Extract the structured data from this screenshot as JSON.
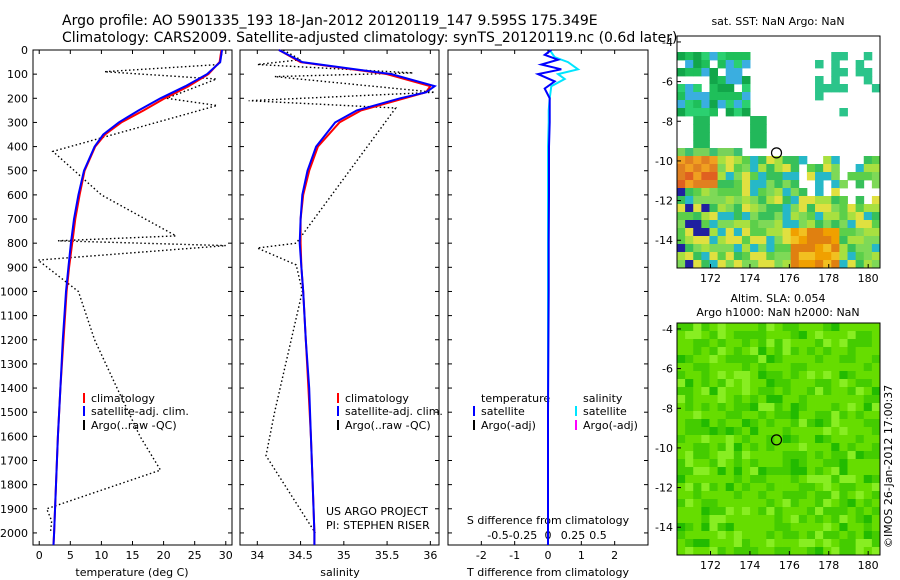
{
  "header": {
    "line1": "Argo profile: AO 5901335_193 18-Jan-2012 20120119_147 9.595S 175.349E",
    "line2": "Climatology: CARS2009. Satellite-adjusted climatology: synTS_20120119.nc (0.6d later)"
  },
  "colors": {
    "climatology": "#ff0000",
    "satellite": "#0000ff",
    "argo": "#000000",
    "sal_satellite": "#00e5ff",
    "sal_argo": "#ff00ff"
  },
  "chart_data": [
    {
      "type": "line",
      "panel": "temperature",
      "xlabel": "temperature (deg C)",
      "ylim": [
        2050,
        0
      ],
      "xlim": [
        -1,
        31
      ],
      "xticks": [
        0,
        5,
        10,
        15,
        20,
        25,
        30
      ],
      "yticks": [
        0,
        100,
        200,
        300,
        400,
        500,
        600,
        700,
        800,
        900,
        1000,
        1100,
        1200,
        1300,
        1400,
        1500,
        1600,
        1700,
        1800,
        1900,
        2000
      ],
      "legend": [
        "climatology",
        "satellite-adj. clim.",
        "Argo(..raw -QC)"
      ],
      "series": [
        {
          "name": "climatology",
          "depth": [
            0,
            50,
            100,
            150,
            200,
            250,
            300,
            350,
            400,
            500,
            600,
            700,
            800,
            900,
            1000,
            1200,
            1400,
            1600,
            1800,
            2000,
            2050
          ],
          "values": [
            29.3,
            29.0,
            27.2,
            24.0,
            20.2,
            16.8,
            13.2,
            10.6,
            9.0,
            7.3,
            6.5,
            5.8,
            5.3,
            4.8,
            4.4,
            3.9,
            3.4,
            3.0,
            2.7,
            2.4,
            2.3
          ]
        },
        {
          "name": "satellite-adj. clim.",
          "depth": [
            0,
            50,
            100,
            150,
            200,
            250,
            300,
            350,
            400,
            500,
            600,
            700,
            800,
            900,
            1000,
            1200,
            1400,
            1600,
            1800,
            2000,
            2050
          ],
          "values": [
            29.4,
            29.1,
            27.0,
            23.5,
            19.5,
            16.0,
            12.8,
            10.3,
            8.9,
            7.2,
            6.3,
            5.6,
            5.1,
            4.7,
            4.3,
            3.8,
            3.4,
            3.0,
            2.7,
            2.4,
            2.3
          ]
        }
      ],
      "argo_raw": {
        "depth": [
          0,
          25,
          60,
          90,
          120,
          200,
          230,
          420,
          600,
          770,
          790,
          810,
          870,
          1000,
          1200,
          1400,
          1600,
          1740,
          1900,
          1950,
          2000
        ],
        "values": [
          29.4,
          29.3,
          29.0,
          10.5,
          28.5,
          20.5,
          28.6,
          2.2,
          10,
          22,
          3,
          30,
          -0.2,
          6.3,
          8.9,
          12.5,
          16.2,
          19.5,
          1.2,
          2.0,
          1.8
        ]
      }
    },
    {
      "type": "line",
      "panel": "salinity",
      "xlabel": "salinity",
      "ylim": [
        2050,
        0
      ],
      "xlim": [
        33.8,
        36.1
      ],
      "xticks": [
        34,
        34.5,
        35,
        35.5,
        36
      ],
      "legend": [
        "climatology",
        "satellite-adj. clim.",
        "Argo(..raw -QC)"
      ],
      "series": [
        {
          "name": "climatology",
          "depth": [
            0,
            50,
            100,
            150,
            175,
            200,
            250,
            300,
            400,
            500,
            600,
            700,
            800,
            900,
            1000,
            1200,
            1400,
            1600,
            1800,
            2000,
            2050
          ],
          "values": [
            34.25,
            34.5,
            35.5,
            36.0,
            35.95,
            35.7,
            35.2,
            34.95,
            34.7,
            34.6,
            34.53,
            34.5,
            34.5,
            34.51,
            34.53,
            34.56,
            34.59,
            34.62,
            34.64,
            34.66,
            34.66
          ]
        },
        {
          "name": "satellite-adj. clim.",
          "depth": [
            0,
            50,
            100,
            150,
            175,
            200,
            250,
            300,
            400,
            500,
            600,
            700,
            800,
            900,
            1000,
            1200,
            1400,
            1600,
            1800,
            2000,
            2050
          ],
          "values": [
            34.25,
            34.52,
            35.55,
            36.05,
            35.95,
            35.65,
            35.15,
            34.9,
            34.68,
            34.58,
            34.52,
            34.5,
            34.49,
            34.51,
            34.53,
            34.56,
            34.6,
            34.62,
            34.64,
            34.66,
            34.66
          ]
        }
      ],
      "argo_raw": {
        "depth": [
          0,
          40,
          60,
          95,
          110,
          175,
          210,
          240,
          800,
          820,
          890,
          1000,
          1500,
          1680,
          2000
        ],
        "values": [
          34.3,
          34.5,
          34.0,
          35.8,
          34.2,
          36.05,
          33.9,
          35.6,
          34.45,
          34.0,
          34.45,
          34.52,
          34.2,
          34.1,
          34.67
        ]
      },
      "annotations": [
        "US ARGO PROJECT",
        "PI: STEPHEN RISER"
      ]
    },
    {
      "type": "line",
      "panel": "difference",
      "xlabel": "T difference from climatology",
      "x2label": "S difference from climatology",
      "ylim": [
        2050,
        0
      ],
      "xlim": [
        -3,
        3
      ],
      "xticks": [
        -2,
        -1,
        0,
        1,
        2
      ],
      "x2ticks": [
        "-0.5",
        "-0.25",
        "0",
        "0.25",
        "0.5"
      ],
      "legend_temperature_title": "temperature",
      "legend_salinity_title": "salinity",
      "legend": [
        "satellite",
        "Argo(-adj)",
        "satellite",
        "Argo(-adj)"
      ],
      "series": [
        {
          "name": "temperature satellite",
          "depth": [
            0,
            20,
            40,
            60,
            80,
            100,
            130,
            160,
            200,
            250,
            300,
            400,
            600,
            800,
            1000,
            1500,
            2050
          ],
          "values": [
            0.1,
            -0.1,
            0.3,
            -0.2,
            0.4,
            -0.3,
            0.2,
            -0.1,
            0.05,
            0.05,
            0.05,
            0.03,
            0.03,
            0.02,
            0.02,
            0.0,
            0.0
          ]
        },
        {
          "name": "salinity satellite",
          "depth": [
            0,
            30,
            50,
            80,
            100,
            120,
            150,
            200,
            250,
            300,
            400,
            600,
            1000,
            1500,
            2050
          ],
          "values": [
            0.05,
            0.2,
            0.6,
            0.9,
            0.3,
            0.5,
            0.1,
            0.05,
            0.02,
            0.02,
            0.0,
            0.0,
            0.0,
            0.0,
            0.0
          ]
        }
      ]
    },
    {
      "type": "heatmap",
      "panel": "sst-map",
      "title": "sat. SST: NaN Argo: NaN",
      "xticks": [
        172,
        174,
        176,
        178,
        180
      ],
      "yticks": [
        -4,
        -6,
        -8,
        -10,
        -12,
        -14
      ],
      "xlim": [
        170.3,
        180.6
      ],
      "ylim": [
        -15.4,
        -3.7
      ],
      "marker": {
        "lon": 175.349,
        "lat": -9.595
      }
    },
    {
      "type": "heatmap",
      "panel": "sla-map",
      "title": "Altim. SLA: 0.054",
      "subtitle": "Argo h1000: NaN h2000: NaN",
      "xticks": [
        172,
        174,
        176,
        178,
        180
      ],
      "yticks": [
        -4,
        -6,
        -8,
        -10,
        -12,
        -14
      ],
      "xlim": [
        170.3,
        180.6
      ],
      "ylim": [
        -15.4,
        -3.7
      ],
      "marker": {
        "lon": 175.349,
        "lat": -9.595
      }
    }
  ],
  "side_label": "©IMOS 26-Jan-2012 17:00:37"
}
